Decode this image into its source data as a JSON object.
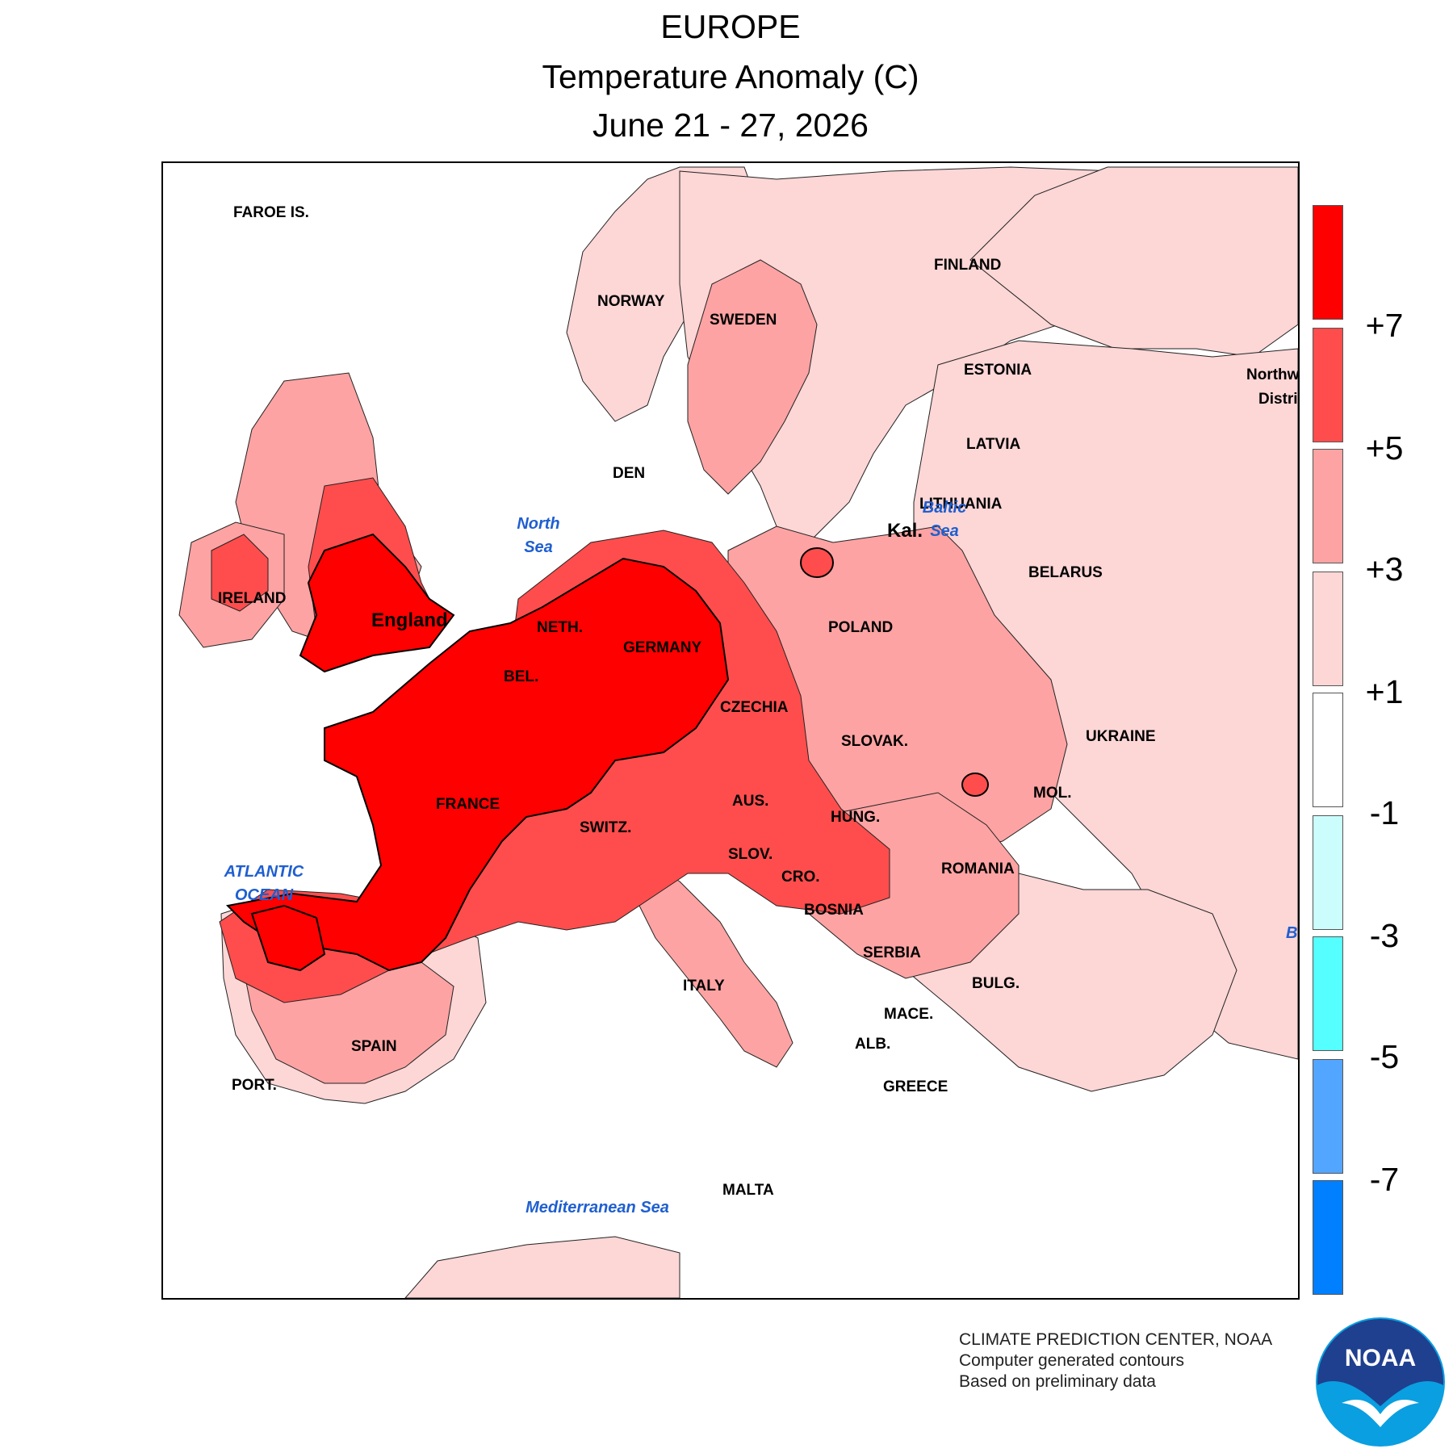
{
  "title": {
    "line1": "EUROPE",
    "line2": "Temperature Anomaly (C)",
    "line3": "June 21 - 27, 2026"
  },
  "legend": {
    "bins": [
      {
        "color": "#ff0000"
      },
      {
        "color": "#ff4d4d"
      },
      {
        "color": "#fea3a3"
      },
      {
        "color": "#fdd6d6"
      },
      {
        "color": "#ffffff"
      },
      {
        "color": "#ccfdfd"
      },
      {
        "color": "#55ffff"
      },
      {
        "color": "#53a6ff"
      },
      {
        "color": "#0080ff"
      }
    ],
    "labels": [
      "+7",
      "+5",
      "+3",
      "+1",
      "-1",
      "-3",
      "-5",
      "-7"
    ]
  },
  "map": {
    "country_labels": {
      "faroe": "FAROE IS.",
      "norway": "NORWAY",
      "sweden": "SWEDEN",
      "finland": "FINLAND",
      "estonia": "ESTONIA",
      "latvia": "LATVIA",
      "lithuania": "LITHUANIA",
      "kal": "Kal.",
      "belarus": "BELARUS",
      "ireland": "IRELAND",
      "england": "England",
      "den": "DEN",
      "neth": "NETH.",
      "bel": "BEL.",
      "germany": "GERMANY",
      "poland": "POLAND",
      "czechia": "CZECHIA",
      "slovak": "SLOVAK.",
      "ukraine": "UKRAINE",
      "france": "FRANCE",
      "switz": "SWITZ.",
      "aus": "AUS.",
      "hung": "HUNG.",
      "mol": "MOL.",
      "slov": "SLOV.",
      "romania": "ROMANIA",
      "cro": "CRO.",
      "bosnia": "BOSNIA",
      "serbia": "SERBIA",
      "italy": "ITALY",
      "bulg": "BULG.",
      "mace": "MACE.",
      "alb": "ALB.",
      "greece": "GREECE",
      "spain": "SPAIN",
      "port": "PORT.",
      "malta": "MALTA",
      "northwest_district_1": "Northw",
      "northwest_district_2": "Distri",
      "black_sea_partial": "B"
    },
    "water_labels": {
      "north_sea_1": "North",
      "north_sea_2": "Sea",
      "baltic_1": "Baltic",
      "baltic_2": "Sea",
      "atlantic_1": "ATLANTIC",
      "atlantic_2": "OCEAN",
      "med": "Mediterranean Sea"
    }
  },
  "credits": {
    "line1": "CLIMATE PREDICTION CENTER, NOAA",
    "line2": "Computer generated contours",
    "line3": "Based on preliminary data"
  },
  "logo": {
    "text": "NOAA",
    "colors": {
      "navy": "#1f3f8f",
      "blue": "#0a9fe0"
    }
  }
}
